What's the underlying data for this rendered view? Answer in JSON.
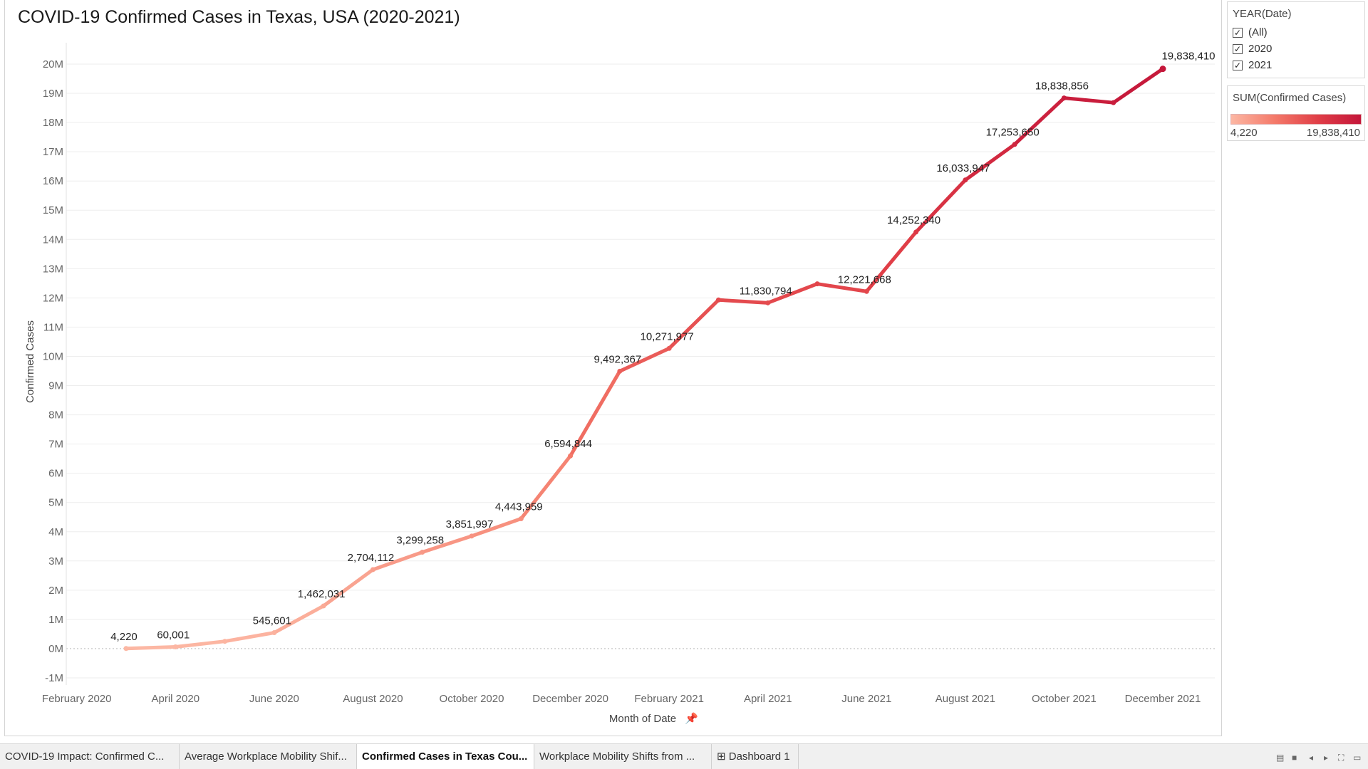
{
  "title": "COVID-19 Confirmed Cases in Texas, USA (2020-2021)",
  "chart_data": {
    "type": "line",
    "title": "COVID-19 Confirmed Cases in Texas, USA (2020-2021)",
    "xlabel": "Month of Date",
    "ylabel": "Confirmed Cases",
    "ylim": [
      -1000000,
      20000000
    ],
    "yticks": [
      "-1M",
      "0M",
      "1M",
      "2M",
      "3M",
      "4M",
      "5M",
      "6M",
      "7M",
      "8M",
      "9M",
      "10M",
      "11M",
      "12M",
      "13M",
      "14M",
      "15M",
      "16M",
      "17M",
      "18M",
      "19M",
      "20M"
    ],
    "xtick_labels": [
      {
        "label": "February 2020",
        "month": "2020-02"
      },
      {
        "label": "April 2020",
        "month": "2020-04"
      },
      {
        "label": "June 2020",
        "month": "2020-06"
      },
      {
        "label": "August 2020",
        "month": "2020-08"
      },
      {
        "label": "October 2020",
        "month": "2020-10"
      },
      {
        "label": "December 2020",
        "month": "2020-12"
      },
      {
        "label": "February 2021",
        "month": "2021-02"
      },
      {
        "label": "April 2021",
        "month": "2021-04"
      },
      {
        "label": "June 2021",
        "month": "2021-06"
      },
      {
        "label": "August 2021",
        "month": "2021-08"
      },
      {
        "label": "October 2021",
        "month": "2021-10"
      },
      {
        "label": "December 2021",
        "month": "2021-12"
      }
    ],
    "points": [
      {
        "month": "2020-03",
        "value": 4220,
        "label": "4,220"
      },
      {
        "month": "2020-04",
        "value": 60001,
        "label": "60,001"
      },
      {
        "month": "2020-05",
        "value": 250000,
        "label": ""
      },
      {
        "month": "2020-06",
        "value": 545601,
        "label": "545,601"
      },
      {
        "month": "2020-07",
        "value": 1462031,
        "label": "1,462,031"
      },
      {
        "month": "2020-08",
        "value": 2704112,
        "label": "2,704,112"
      },
      {
        "month": "2020-09",
        "value": 3299258,
        "label": "3,299,258"
      },
      {
        "month": "2020-10",
        "value": 3851997,
        "label": "3,851,997"
      },
      {
        "month": "2020-11",
        "value": 4443959,
        "label": "4,443,959"
      },
      {
        "month": "2020-12",
        "value": 6594844,
        "label": "6,594,844"
      },
      {
        "month": "2021-01",
        "value": 9492367,
        "label": "9,492,367"
      },
      {
        "month": "2021-02",
        "value": 10271977,
        "label": "10,271,977"
      },
      {
        "month": "2021-03",
        "value": 11930000,
        "label": ""
      },
      {
        "month": "2021-04",
        "value": 11830794,
        "label": "11,830,794"
      },
      {
        "month": "2021-05",
        "value": 12480000,
        "label": ""
      },
      {
        "month": "2021-06",
        "value": 12221668,
        "label": "12,221,668"
      },
      {
        "month": "2021-07",
        "value": 14252340,
        "label": "14,252,340"
      },
      {
        "month": "2021-08",
        "value": 16033947,
        "label": "16,033,947"
      },
      {
        "month": "2021-09",
        "value": 17253650,
        "label": "17,253,650"
      },
      {
        "month": "2021-10",
        "value": 18838856,
        "label": "18,838,856"
      },
      {
        "month": "2021-11",
        "value": 18680000,
        "label": ""
      },
      {
        "month": "2021-12",
        "value": 19838410,
        "label": "19,838,410"
      }
    ],
    "color_scale": {
      "min_color": "#fcb7a3",
      "mid_color": "#e85a55",
      "max_color": "#c4163a"
    },
    "grid": true,
    "zero_line": "dotted"
  },
  "filter": {
    "title": "YEAR(Date)",
    "items": [
      {
        "label": "(All)",
        "checked": "✓"
      },
      {
        "label": "2020",
        "checked": "✓"
      },
      {
        "label": "2021",
        "checked": "✓"
      }
    ]
  },
  "legend": {
    "title": "SUM(Confirmed Cases)",
    "min": "4,220",
    "max": "19,838,410"
  },
  "tabs": [
    {
      "label": "COVID-19 Impact: Confirmed C...",
      "active": false
    },
    {
      "label": "Average Workplace Mobility Shif...",
      "active": false
    },
    {
      "label": "Confirmed Cases in Texas Cou...",
      "active": true
    },
    {
      "label": "Workplace Mobility Shifts from ...",
      "active": false
    },
    {
      "label": "⊞ Dashboard 1",
      "active": false
    }
  ],
  "pin_icon": "pin-icon"
}
